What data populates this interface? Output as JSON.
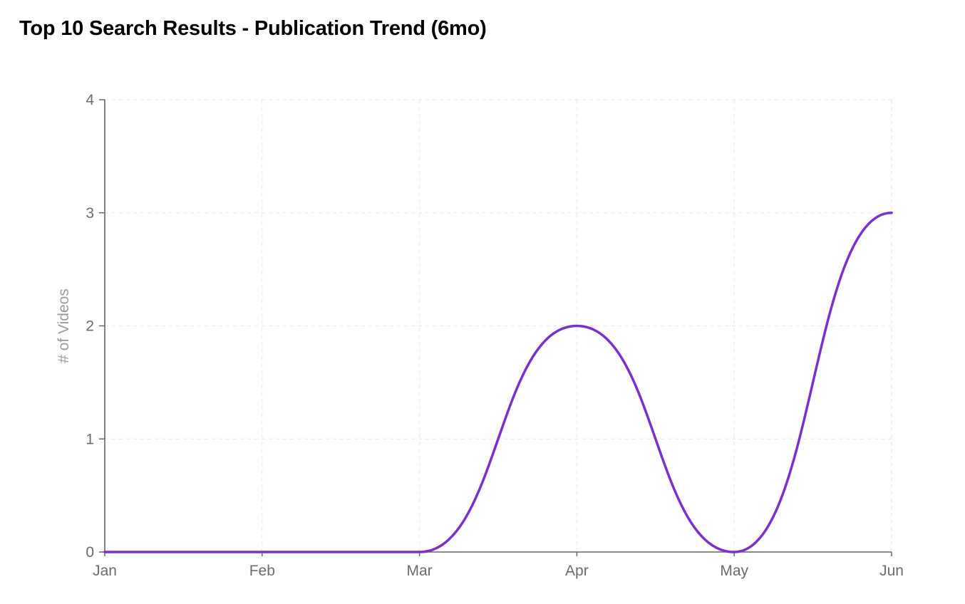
{
  "chart_data": {
    "type": "line",
    "title": "Top 10 Search Results - Publication Trend (6mo)",
    "xlabel": "",
    "ylabel": "# of Videos",
    "categories": [
      "Jan",
      "Feb",
      "Mar",
      "Apr",
      "May",
      "Jun"
    ],
    "series": [
      {
        "values": [
          0,
          0,
          0,
          2,
          0,
          3
        ],
        "color": "#7b2fcc"
      }
    ],
    "ylim": [
      0,
      4
    ],
    "yticks": [
      "0",
      "1",
      "2",
      "3",
      "4"
    ],
    "grid": true,
    "curve": "smooth"
  }
}
